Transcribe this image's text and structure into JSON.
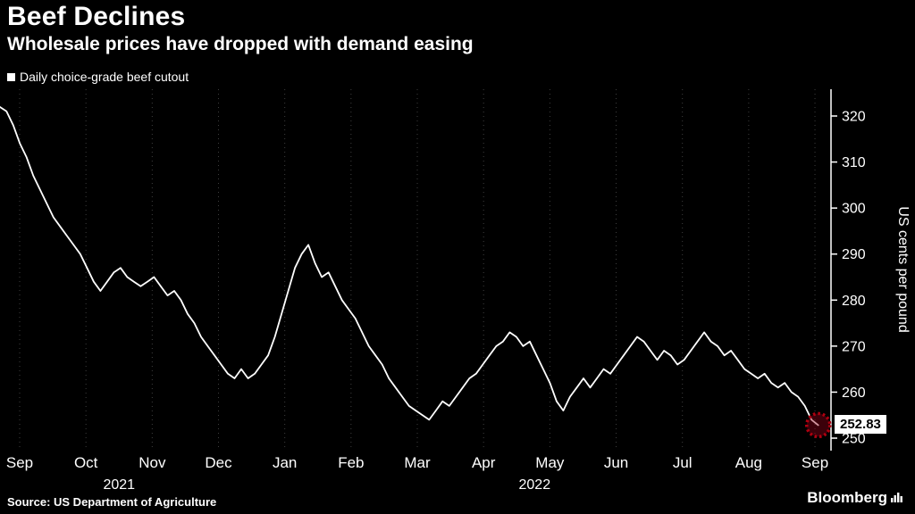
{
  "header": {
    "title": "Beef Declines",
    "subtitle": "Wholesale prices have dropped with demand easing"
  },
  "legend": {
    "label": "Daily choice-grade beef cutout",
    "marker_color": "#ffffff"
  },
  "footer": {
    "source": "Source: US Department of Agriculture",
    "brand": "Bloomberg"
  },
  "chart_data": {
    "type": "line",
    "title": "Beef Declines",
    "series_name": "Daily choice-grade beef cutout",
    "ylabel": "US cents per pound",
    "x_ticks": [
      "Sep",
      "Oct",
      "Nov",
      "Dec",
      "Jan",
      "Feb",
      "Mar",
      "Apr",
      "May",
      "Jun",
      "Jul",
      "Aug",
      "Sep"
    ],
    "year_labels": [
      {
        "text": "2021",
        "tick_index": 1.5
      },
      {
        "text": "2022",
        "tick_index": 7.77
      }
    ],
    "y_ticks": [
      250,
      260,
      270,
      280,
      290,
      300,
      310,
      320
    ],
    "ylim": [
      247,
      326
    ],
    "grid_on": true,
    "legend_position": "top-left",
    "x_start_month": -0.3,
    "x_end_month": 12.05,
    "values": [
      322,
      321,
      318,
      314,
      311,
      307,
      304,
      301,
      298,
      296,
      294,
      292,
      290,
      287,
      284,
      282,
      284,
      286,
      287,
      285,
      284,
      283,
      284,
      285,
      283,
      281,
      282,
      280,
      277,
      275,
      272,
      270,
      268,
      266,
      264,
      263,
      265,
      263,
      264,
      266,
      268,
      272,
      277,
      282,
      287,
      290,
      292,
      288,
      285,
      286,
      283,
      280,
      278,
      276,
      273,
      270,
      268,
      266,
      263,
      261,
      259,
      257,
      256,
      255,
      254,
      256,
      258,
      257,
      259,
      261,
      263,
      264,
      266,
      268,
      270,
      271,
      273,
      272,
      270,
      271,
      268,
      265,
      262,
      258,
      256,
      259,
      261,
      263,
      261,
      263,
      265,
      264,
      266,
      268,
      270,
      272,
      271,
      269,
      267,
      269,
      268,
      266,
      267,
      269,
      271,
      273,
      271,
      270,
      268,
      269,
      267,
      265,
      264,
      263,
      264,
      262,
      261,
      262,
      260,
      259,
      257,
      254,
      252.83
    ],
    "last_value": 252.83,
    "last_value_label": "252.83",
    "line_color": "#ffffff",
    "highlight_color": "#b00010",
    "grid_color": "#3f3f3f",
    "axis_color": "#ffffff"
  }
}
